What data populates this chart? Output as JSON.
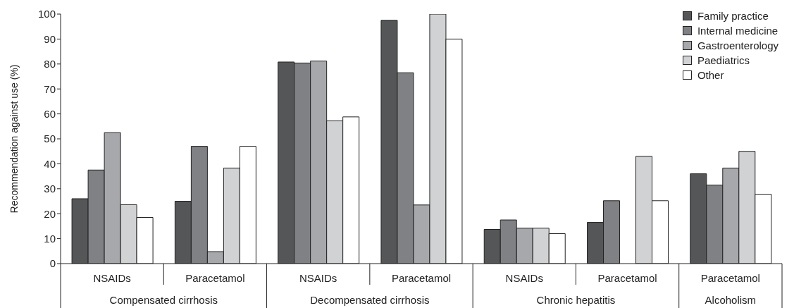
{
  "chart_data": {
    "type": "bar",
    "ylabel": "Recommendation against use (%)",
    "categories": [
      "NSAIDs",
      "Paracetamol",
      "NSAIDs",
      "Paracetamol",
      "NSAIDs",
      "Paracetamol",
      "Paracetamol"
    ],
    "annotations": [
      "Compensated cirrhosis",
      "Decompensated cirrhosis",
      "Chronic hepatitis",
      "Alcoholism"
    ],
    "series": [
      {
        "name": "Family practice",
        "color": "#555658",
        "values": [
          26,
          25,
          80.8,
          97.5,
          13.7,
          16.5,
          36
        ]
      },
      {
        "name": "Internal medicine",
        "color": "#808184",
        "values": [
          37.5,
          47,
          80.4,
          76.5,
          17.5,
          25.2,
          31.5
        ]
      },
      {
        "name": "Gastroenterology",
        "color": "#a7a8ab",
        "values": [
          52.5,
          4.8,
          81.2,
          23.5,
          14.2,
          null,
          38.3
        ]
      },
      {
        "name": "Paediatrics",
        "color": "#d1d2d4",
        "values": [
          23.6,
          38.3,
          57.2,
          100,
          14.2,
          43,
          45
        ]
      },
      {
        "name": "Other",
        "color": "#ffffff",
        "values": [
          18.5,
          47,
          58.8,
          90,
          12,
          25.2,
          27.8
        ]
      }
    ],
    "ylim": [
      0,
      100
    ],
    "yticks": [
      0,
      10,
      20,
      30,
      40,
      50,
      60,
      70,
      80,
      90,
      100
    ],
    "grid": false,
    "legend": "top right"
  }
}
